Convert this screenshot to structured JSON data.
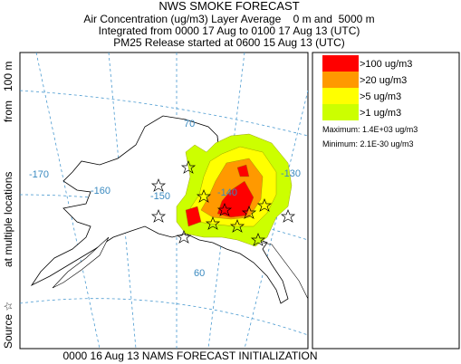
{
  "header": {
    "title": "NWS SMOKE FORECAST",
    "lines": [
      "Air Concentration (ug/m3) Layer Average    0 m and  5000 m",
      "Integrated from 0000 17 Aug to 0100 17 Aug 13 (UTC)",
      "PM25 Release started at 0600 15 Aug 13 (UTC)"
    ]
  },
  "side_label": [
    "Source ☆",
    "at multiple locations",
    "from   100 m"
  ],
  "footer": "0000 16 Aug 13 NAMS FORECAST INITIALIZATION",
  "map_labels": {
    "longitudes": [
      "-170",
      "-160",
      "-150",
      "-140",
      "-130"
    ],
    "latitudes": [
      "70",
      "60"
    ]
  },
  "legend": {
    "entries": [
      {
        "label": ">100 ug/m3",
        "color": "#ff0000"
      },
      {
        "label": ">20 ug/m3",
        "color": "#ff9900"
      },
      {
        "label": ">5 ug/m3",
        "color": "#ffff00"
      },
      {
        "label": ">1 ug/m3",
        "color": "#ccff00"
      }
    ],
    "maximum": "Maximum: 1.4E+03 ug/m3",
    "minimum": "Minimum: 2.1E-30 ug/m3"
  }
}
